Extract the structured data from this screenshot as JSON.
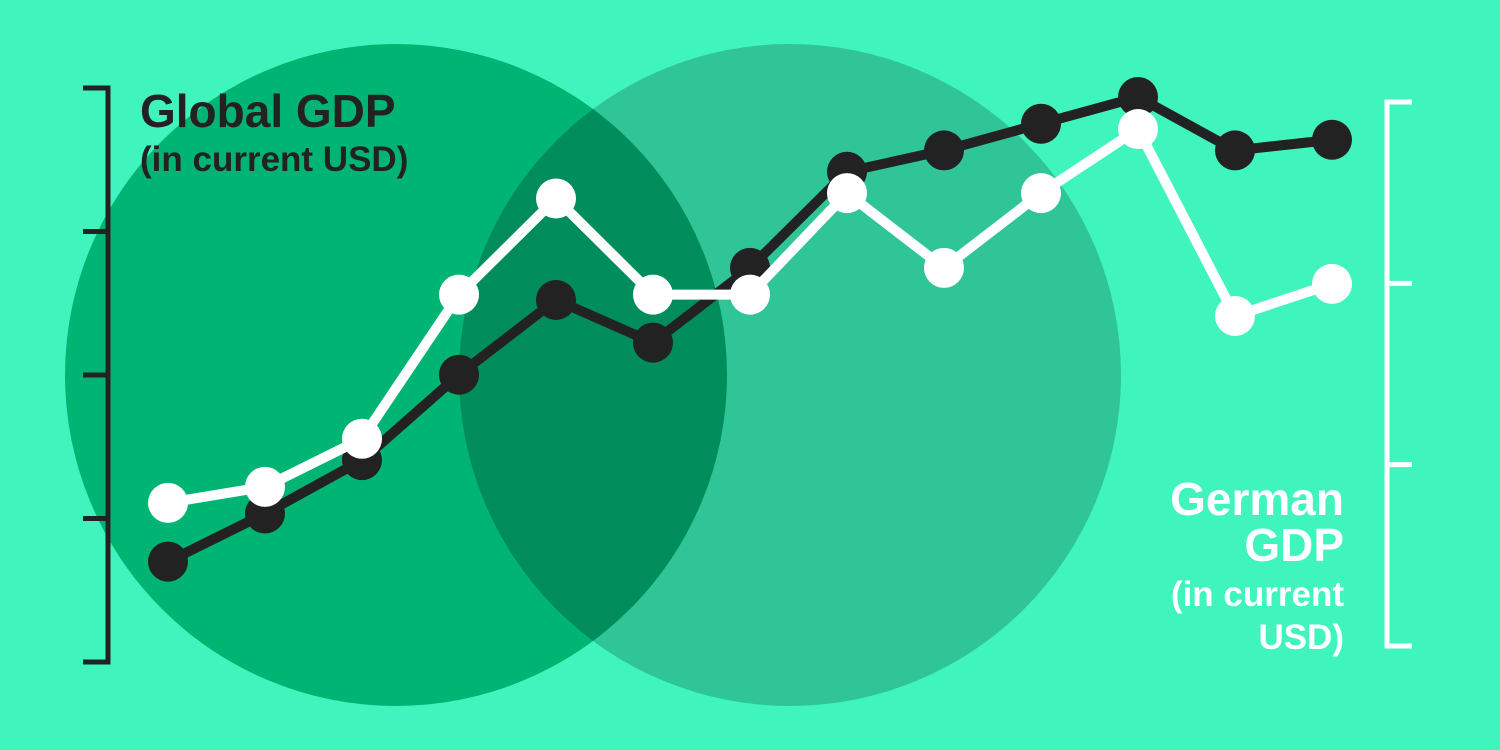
{
  "colors": {
    "background": "#3ff5bd",
    "circle_left": "#00b574",
    "circle_right": "#30c597",
    "circle_overlap": "#008d5c",
    "global_series": "#222222",
    "german_series": "#ffffff"
  },
  "chart_data": {
    "type": "line",
    "x": [
      1,
      2,
      3,
      4,
      5,
      6,
      7,
      8,
      9,
      10,
      11,
      12,
      13
    ],
    "left_axis": {
      "title": "Global GDP",
      "subtitle": "(in current USD)",
      "ticks": 5,
      "ylim": [
        0,
        100
      ]
    },
    "right_axis": {
      "title": "German GDP",
      "subtitle": "(in current USD)",
      "ticks": 4,
      "ylim": [
        0,
        100
      ]
    },
    "series": [
      {
        "name": "Global GDP (in current USD)",
        "axis": "left",
        "color": "#222222",
        "values": [
          10,
          19,
          29,
          45,
          59,
          51,
          65,
          83,
          87,
          92,
          97,
          87,
          89
        ]
      },
      {
        "name": "German GDP (in current USD)",
        "axis": "right",
        "color": "#ffffff",
        "values": [
          21,
          24,
          33,
          60,
          78,
          60,
          60,
          79,
          65,
          79,
          91,
          56,
          62
        ]
      }
    ],
    "grid": false,
    "legend": "none"
  }
}
